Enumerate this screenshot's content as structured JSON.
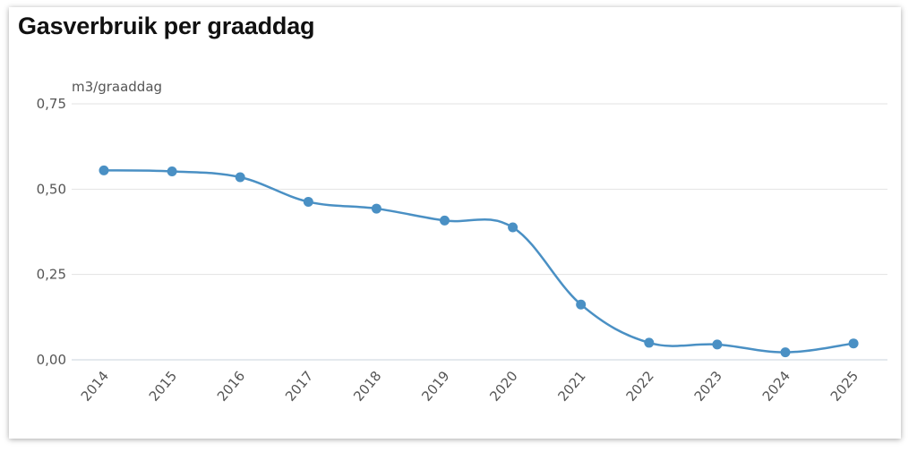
{
  "chart_data": {
    "type": "line",
    "title": "Gasverbruik per graaddag",
    "ylabel": "m3/graaddag",
    "xlabel": "",
    "categories": [
      "2014",
      "2015",
      "2016",
      "2017",
      "2018",
      "2019",
      "2020",
      "2021",
      "2022",
      "2023",
      "2024",
      "2025"
    ],
    "series": [
      {
        "values": [
          0.555,
          0.552,
          0.535,
          0.463,
          0.443,
          0.408,
          0.388,
          0.162,
          0.05,
          0.045,
          0.022,
          0.048
        ]
      }
    ],
    "yticks": [
      "0,00",
      "0,25",
      "0,50",
      "0,75"
    ],
    "ylim": [
      0,
      0.75
    ],
    "grid": true,
    "legend": "none",
    "colors": {
      "line": "#4a90c4",
      "grid": "#e3e3e3",
      "axis": "#c8d3dc"
    }
  }
}
